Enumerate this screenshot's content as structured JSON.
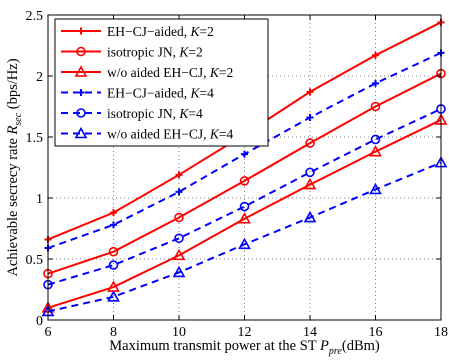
{
  "chart_data": {
    "type": "line",
    "x": [
      6,
      8,
      10,
      12,
      14,
      16,
      18
    ],
    "xlim": [
      6,
      18
    ],
    "ylim": [
      0,
      2.5
    ],
    "xticks": [
      6,
      8,
      10,
      12,
      14,
      16,
      18
    ],
    "yticks": [
      0,
      0.5,
      1,
      1.5,
      2,
      2.5
    ],
    "xtick_labels": [
      "6",
      "8",
      "10",
      "12",
      "14",
      "16",
      "18"
    ],
    "ytick_labels": [
      "0",
      "0.5",
      "1",
      "1.5",
      "2",
      "2.5"
    ],
    "xlabel": {
      "main": "Maximum transmit power at the ST ",
      "var": "P",
      "sub": "pre",
      "unit": "(dBm)"
    },
    "ylabel": {
      "main": "Achievable secrecy rate ",
      "var": "R",
      "sub": "sec",
      "unit": " (bps/Hz)"
    },
    "grid": true,
    "legend_position": "top-left",
    "series": [
      {
        "label": "EH−CJ−aided, ",
        "kvar": "K",
        "kval": "=2",
        "color": "#ff0000",
        "dash": "solid",
        "marker": "plus",
        "values": [
          0.66,
          0.88,
          1.19,
          1.52,
          1.87,
          2.17,
          2.44
        ]
      },
      {
        "label": "isotropic JN, ",
        "kvar": "K",
        "kval": "=2",
        "color": "#ff0000",
        "dash": "solid",
        "marker": "circle",
        "values": [
          0.38,
          0.56,
          0.84,
          1.14,
          1.45,
          1.75,
          2.02
        ]
      },
      {
        "label": "w/o aided EH−CJ, ",
        "kvar": "K",
        "kval": "=2",
        "color": "#ff0000",
        "dash": "solid",
        "marker": "triangle",
        "values": [
          0.1,
          0.27,
          0.53,
          0.83,
          1.11,
          1.38,
          1.64
        ]
      },
      {
        "label": "EH−CJ−aided, ",
        "kvar": "K",
        "kval": "=4",
        "color": "#0000ff",
        "dash": "dashed",
        "marker": "plus",
        "values": [
          0.59,
          0.78,
          1.05,
          1.36,
          1.66,
          1.94,
          2.19
        ]
      },
      {
        "label": "isotropic JN, ",
        "kvar": "K",
        "kval": "=4",
        "color": "#0000ff",
        "dash": "dashed",
        "marker": "circle",
        "values": [
          0.29,
          0.45,
          0.67,
          0.93,
          1.21,
          1.48,
          1.73
        ]
      },
      {
        "label": "w/o aided EH−CJ, ",
        "kvar": "K",
        "kval": "=4",
        "color": "#0000ff",
        "dash": "dashed",
        "marker": "triangle",
        "values": [
          0.07,
          0.19,
          0.39,
          0.62,
          0.84,
          1.07,
          1.29
        ]
      }
    ]
  }
}
